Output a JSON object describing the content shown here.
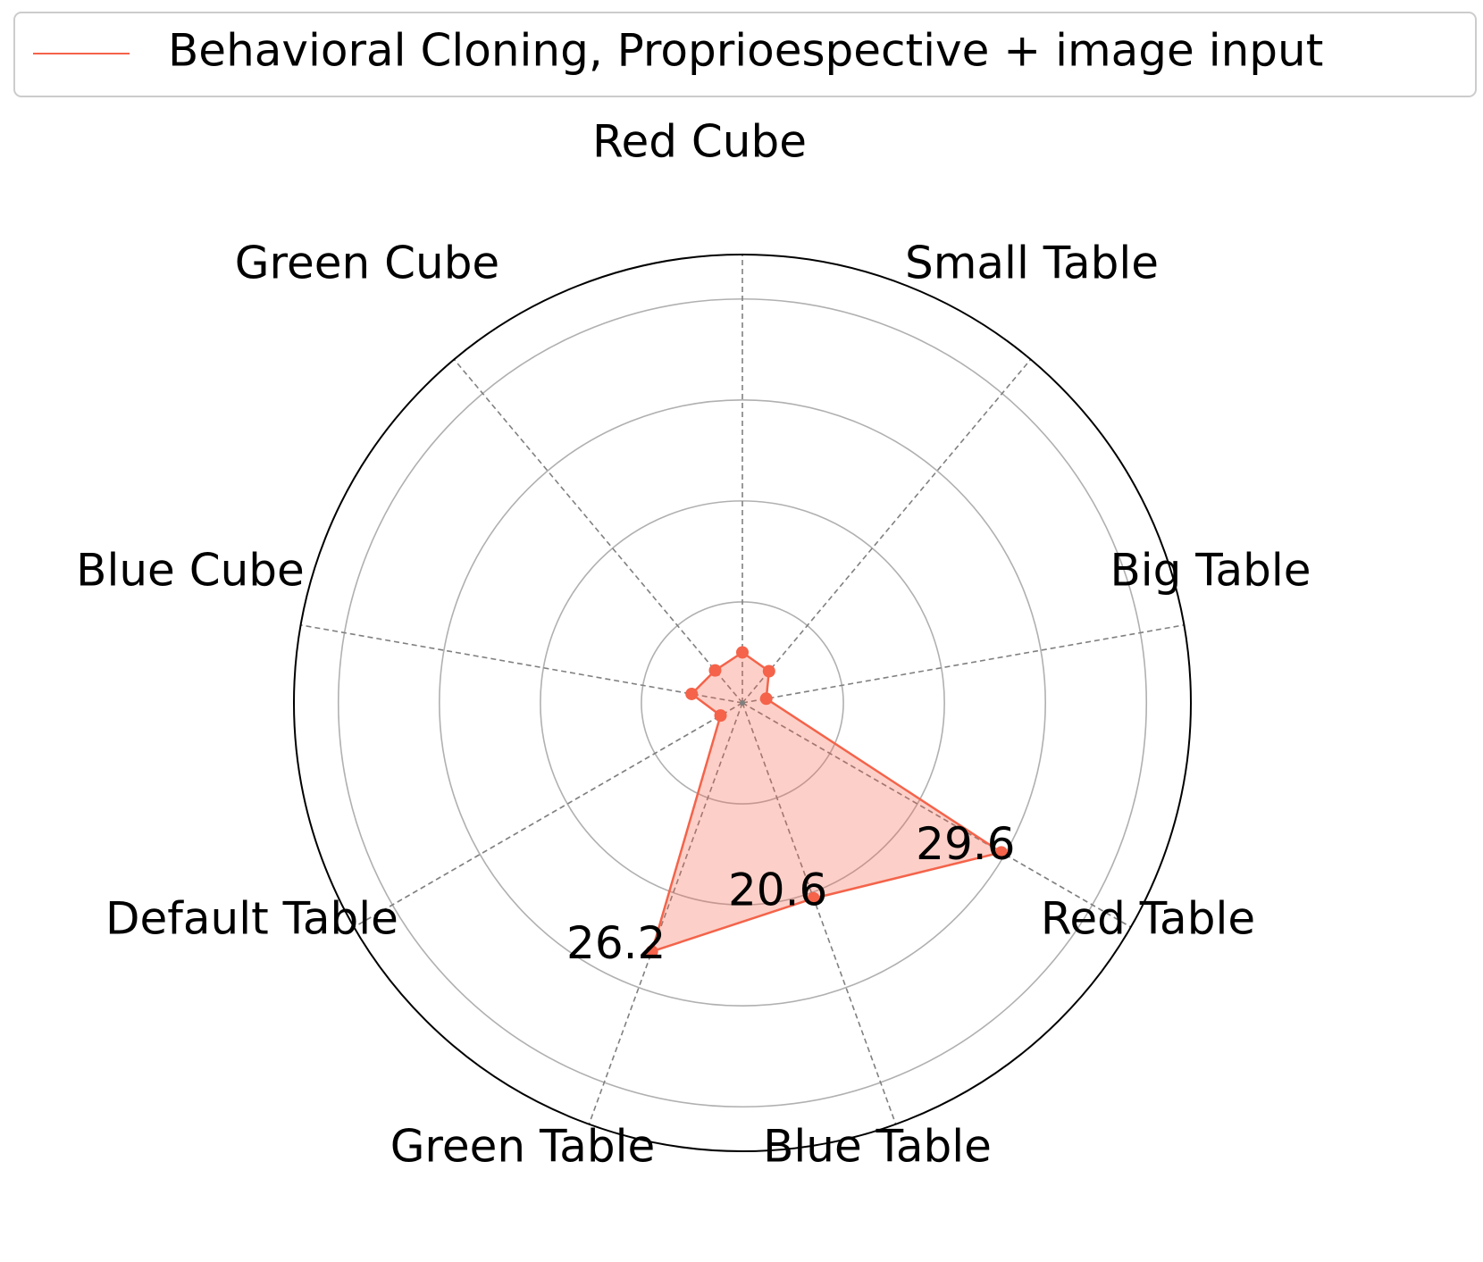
{
  "chart_data": {
    "type": "radar",
    "categories": [
      "Red Cube",
      "Small Table",
      "Big Table",
      "Red Table",
      "Blue Table",
      "Green Table",
      "Default Table",
      "Blue Cube",
      "Green Cube"
    ],
    "series": [
      {
        "name": "Behavioral Cloning, Proprioespective + image input",
        "color": "#f4634a",
        "values": [
          5.0,
          4.1,
          2.4,
          29.6,
          20.6,
          26.2,
          2.5,
          5.1,
          4.2
        ],
        "value_labels": [
          null,
          null,
          null,
          "29.6",
          "20.6",
          "26.2",
          null,
          null,
          null
        ]
      }
    ],
    "ylim": [
      0,
      44.4
    ],
    "yticks": [
      10,
      20,
      30,
      40
    ],
    "grid": true,
    "legend": "top"
  }
}
